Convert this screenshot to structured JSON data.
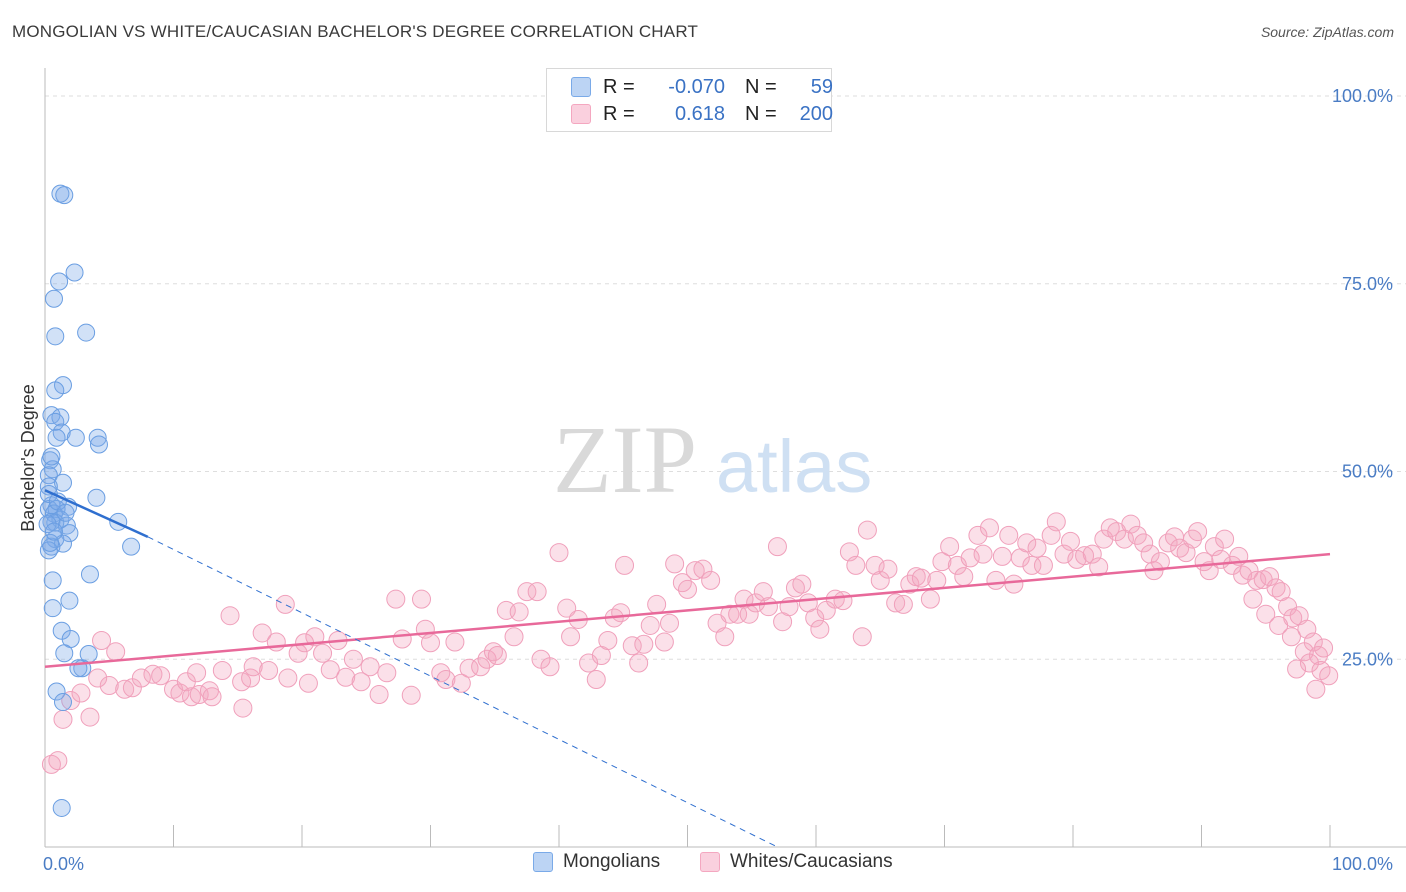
{
  "title": "MONGOLIAN VS WHITE/CAUCASIAN BACHELOR'S DEGREE CORRELATION CHART",
  "source": "Source: ZipAtlas.com",
  "watermark": {
    "zip": "ZIP",
    "atlas": "atlas"
  },
  "legend": {
    "rows": [
      {
        "r_label": "R =",
        "r_value": "-0.070",
        "n_label": "N =",
        "n_value": "59",
        "color": "#7aaae8"
      },
      {
        "r_label": "R =",
        "r_value": "0.618",
        "n_label": "N =",
        "n_value": "200",
        "color": "#f4a7c0"
      }
    ]
  },
  "bottom_legend": {
    "series1": "Mongolians",
    "series2": "Whites/Caucasians"
  },
  "colors": {
    "blue": "#7aaae8",
    "blue_line": "#2f6fcf",
    "pink": "#f4a7c0",
    "pink_line": "#e8699a",
    "tick": "#4a7cc4"
  },
  "chart_data": {
    "type": "scatter",
    "ylabel": "Bachelor's Degree",
    "xlim": [
      0,
      100
    ],
    "ylim": [
      0,
      100
    ],
    "x_tick_labels": [
      "0.0%",
      "100.0%"
    ],
    "y_tick_labels": [
      "100.0%",
      "75.0%",
      "50.0%",
      "25.0%"
    ],
    "y_ticks": [
      100,
      75,
      50,
      25
    ],
    "grid": true,
    "legend_position": "top-center",
    "series": [
      {
        "name": "Mongolians",
        "color": "#7aaae8",
        "trend": {
          "x": [
            0,
            8
          ],
          "y": [
            47.5,
            41.3
          ],
          "dashed_extension_to": [
            57,
            0
          ]
        },
        "points": [
          [
            1.2,
            87
          ],
          [
            1.5,
            86.8
          ],
          [
            2.3,
            76.5
          ],
          [
            1.1,
            75.3
          ],
          [
            0.7,
            73
          ],
          [
            3.2,
            68.5
          ],
          [
            0.8,
            68
          ],
          [
            1.4,
            61.5
          ],
          [
            0.8,
            60.8
          ],
          [
            0.5,
            57.5
          ],
          [
            1.2,
            57.2
          ],
          [
            0.8,
            56.6
          ],
          [
            1.3,
            55.2
          ],
          [
            2.4,
            54.5
          ],
          [
            4.1,
            54.5
          ],
          [
            4.2,
            53.6
          ],
          [
            0.9,
            54.5
          ],
          [
            0.4,
            51.5
          ],
          [
            0.6,
            50.3
          ],
          [
            0.3,
            49.5
          ],
          [
            1.4,
            48.5
          ],
          [
            0.3,
            48
          ],
          [
            4.0,
            46.5
          ],
          [
            0.5,
            45.5
          ],
          [
            1.8,
            45.3
          ],
          [
            0.3,
            45
          ],
          [
            0.9,
            45
          ],
          [
            0.7,
            44.4
          ],
          [
            1.2,
            43.6
          ],
          [
            0.5,
            43.3
          ],
          [
            0.8,
            43.2
          ],
          [
            1.7,
            42.8
          ],
          [
            5.7,
            43.3
          ],
          [
            1.9,
            41.8
          ],
          [
            0.8,
            41
          ],
          [
            1.4,
            40.4
          ],
          [
            0.5,
            40
          ],
          [
            6.7,
            40
          ],
          [
            0.3,
            39.5
          ],
          [
            0.6,
            35.5
          ],
          [
            3.5,
            36.3
          ],
          [
            1.9,
            32.8
          ],
          [
            0.6,
            31.8
          ],
          [
            1.3,
            28.8
          ],
          [
            2.0,
            27.7
          ],
          [
            3.4,
            25.7
          ],
          [
            1.5,
            25.8
          ],
          [
            2.9,
            23.8
          ],
          [
            2.6,
            23.8
          ],
          [
            0.9,
            20.7
          ],
          [
            1.4,
            19.3
          ],
          [
            1.3,
            5.2
          ],
          [
            0.3,
            47
          ],
          [
            0.2,
            43
          ],
          [
            0.4,
            40.5
          ],
          [
            1.0,
            46
          ],
          [
            0.5,
            52
          ],
          [
            1.6,
            44.5
          ],
          [
            0.7,
            42
          ]
        ]
      },
      {
        "name": "Whites/Caucasians",
        "color": "#f4a7c0",
        "trend": {
          "x": [
            0,
            100
          ],
          "y": [
            24,
            39
          ]
        },
        "points": [
          [
            0.5,
            11
          ],
          [
            1.0,
            11.5
          ],
          [
            1.4,
            17
          ],
          [
            2.0,
            19.5
          ],
          [
            2.8,
            20.5
          ],
          [
            3.5,
            17.3
          ],
          [
            4.1,
            22.5
          ],
          [
            4.4,
            27.5
          ],
          [
            5.5,
            26
          ],
          [
            5.0,
            21.5
          ],
          [
            6.2,
            21.0
          ],
          [
            6.8,
            21.2
          ],
          [
            7.5,
            22.5
          ],
          [
            8.4,
            23.0
          ],
          [
            9.0,
            22.8
          ],
          [
            10.0,
            21.0
          ],
          [
            10.5,
            20.5
          ],
          [
            11.0,
            22.0
          ],
          [
            11.4,
            20.0
          ],
          [
            12.0,
            20.3
          ],
          [
            12.8,
            20.8
          ],
          [
            11.8,
            23.2
          ],
          [
            13.0,
            20.0
          ],
          [
            13.8,
            23.5
          ],
          [
            14.4,
            30.8
          ],
          [
            15.3,
            22.0
          ],
          [
            15.4,
            18.5
          ],
          [
            16.0,
            22.5
          ],
          [
            16.2,
            24.0
          ],
          [
            16.9,
            28.5
          ],
          [
            17.4,
            23.5
          ],
          [
            18.0,
            27.3
          ],
          [
            18.7,
            32.3
          ],
          [
            18.9,
            22.5
          ],
          [
            19.7,
            25.8
          ],
          [
            20.5,
            21.8
          ],
          [
            20.2,
            27.2
          ],
          [
            21.0,
            28.0
          ],
          [
            21.6,
            25.8
          ],
          [
            22.2,
            23.6
          ],
          [
            22.8,
            27.5
          ],
          [
            23.4,
            22.6
          ],
          [
            24.0,
            25.0
          ],
          [
            24.6,
            22.0
          ],
          [
            25.3,
            24.0
          ],
          [
            26.0,
            20.3
          ],
          [
            26.6,
            23.2
          ],
          [
            27.3,
            33.0
          ],
          [
            27.8,
            27.7
          ],
          [
            28.5,
            20.2
          ],
          [
            29.3,
            33.0
          ],
          [
            29.6,
            29.0
          ],
          [
            30.0,
            27.2
          ],
          [
            30.8,
            23.2
          ],
          [
            31.2,
            22.3
          ],
          [
            31.9,
            27.3
          ],
          [
            32.4,
            21.8
          ],
          [
            33.0,
            23.8
          ],
          [
            33.9,
            24.0
          ],
          [
            34.4,
            25.0
          ],
          [
            34.9,
            26.0
          ],
          [
            35.2,
            25.5
          ],
          [
            35.9,
            31.5
          ],
          [
            36.5,
            28.0
          ],
          [
            36.9,
            31.3
          ],
          [
            37.5,
            34.0
          ],
          [
            38.3,
            34.0
          ],
          [
            38.6,
            25.0
          ],
          [
            39.3,
            24.0
          ],
          [
            40.0,
            39.2
          ],
          [
            40.6,
            31.8
          ],
          [
            40.9,
            28.0
          ],
          [
            41.5,
            30.3
          ],
          [
            42.3,
            24.5
          ],
          [
            42.9,
            22.3
          ],
          [
            43.3,
            25.5
          ],
          [
            43.8,
            27.5
          ],
          [
            44.3,
            30.5
          ],
          [
            44.8,
            31.2
          ],
          [
            45.1,
            37.5
          ],
          [
            45.7,
            26.8
          ],
          [
            46.2,
            24.5
          ],
          [
            46.6,
            27.0
          ],
          [
            47.1,
            29.5
          ],
          [
            47.6,
            32.3
          ],
          [
            48.2,
            27.3
          ],
          [
            48.6,
            29.8
          ],
          [
            49.0,
            37.7
          ],
          [
            49.6,
            35.2
          ],
          [
            50.0,
            34.3
          ],
          [
            50.6,
            36.8
          ],
          [
            51.2,
            37.0
          ],
          [
            51.8,
            35.5
          ],
          [
            52.3,
            29.8
          ],
          [
            52.9,
            28.0
          ],
          [
            53.3,
            31.0
          ],
          [
            53.9,
            31.0
          ],
          [
            54.4,
            33.0
          ],
          [
            54.8,
            31.0
          ],
          [
            55.3,
            32.5
          ],
          [
            55.9,
            34.0
          ],
          [
            56.3,
            32.0
          ],
          [
            57.0,
            40.0
          ],
          [
            57.4,
            30.0
          ],
          [
            57.9,
            32.0
          ],
          [
            58.4,
            34.5
          ],
          [
            58.9,
            35.0
          ],
          [
            59.4,
            32.5
          ],
          [
            59.9,
            30.5
          ],
          [
            60.3,
            29.0
          ],
          [
            60.8,
            31.5
          ],
          [
            61.5,
            33.0
          ],
          [
            62.1,
            32.8
          ],
          [
            62.6,
            39.3
          ],
          [
            63.1,
            37.5
          ],
          [
            63.6,
            28.0
          ],
          [
            64.0,
            42.2
          ],
          [
            64.6,
            37.5
          ],
          [
            65.0,
            35.5
          ],
          [
            65.6,
            37.0
          ],
          [
            66.2,
            32.5
          ],
          [
            66.8,
            32.3
          ],
          [
            67.3,
            35.0
          ],
          [
            67.8,
            36.0
          ],
          [
            68.2,
            35.8
          ],
          [
            68.9,
            33.0
          ],
          [
            69.4,
            35.5
          ],
          [
            69.8,
            38.0
          ],
          [
            70.4,
            40.0
          ],
          [
            71.0,
            37.5
          ],
          [
            71.5,
            36.0
          ],
          [
            72.0,
            38.5
          ],
          [
            72.6,
            41.5
          ],
          [
            73.0,
            39.0
          ],
          [
            73.5,
            42.5
          ],
          [
            74.0,
            35.5
          ],
          [
            74.5,
            38.7
          ],
          [
            75.0,
            41.5
          ],
          [
            75.4,
            35.0
          ],
          [
            75.9,
            38.5
          ],
          [
            76.4,
            40.5
          ],
          [
            76.8,
            37.5
          ],
          [
            77.2,
            39.8
          ],
          [
            77.7,
            37.5
          ],
          [
            78.3,
            41.5
          ],
          [
            78.7,
            43.3
          ],
          [
            79.3,
            39.0
          ],
          [
            79.8,
            40.7
          ],
          [
            80.3,
            38.3
          ],
          [
            80.9,
            38.8
          ],
          [
            81.5,
            39.0
          ],
          [
            82.0,
            37.3
          ],
          [
            82.4,
            41.0
          ],
          [
            82.9,
            42.5
          ],
          [
            83.4,
            42.0
          ],
          [
            84.0,
            41.0
          ],
          [
            84.5,
            43.0
          ],
          [
            85.0,
            41.5
          ],
          [
            85.5,
            40.5
          ],
          [
            86.0,
            39.0
          ],
          [
            86.3,
            36.8
          ],
          [
            86.8,
            38.0
          ],
          [
            87.4,
            40.5
          ],
          [
            87.9,
            41.3
          ],
          [
            88.3,
            39.8
          ],
          [
            88.8,
            39.2
          ],
          [
            89.3,
            41.0
          ],
          [
            89.7,
            42.0
          ],
          [
            90.2,
            38.0
          ],
          [
            90.6,
            36.8
          ],
          [
            91.0,
            40.0
          ],
          [
            91.5,
            38.3
          ],
          [
            91.8,
            41.0
          ],
          [
            92.4,
            37.5
          ],
          [
            92.9,
            38.7
          ],
          [
            93.2,
            36.2
          ],
          [
            93.7,
            36.8
          ],
          [
            94.3,
            35.5
          ],
          [
            94.8,
            35.6
          ],
          [
            95.3,
            36.0
          ],
          [
            95.8,
            34.5
          ],
          [
            96.2,
            34.0
          ],
          [
            96.7,
            32.0
          ],
          [
            97.1,
            30.5
          ],
          [
            97.6,
            30.8
          ],
          [
            98.2,
            29.0
          ],
          [
            98.7,
            27.3
          ],
          [
            99.1,
            25.5
          ],
          [
            99.5,
            26.5
          ],
          [
            94.0,
            33.0
          ],
          [
            95.0,
            31.0
          ],
          [
            96.0,
            29.5
          ],
          [
            97.0,
            28.0
          ],
          [
            98.0,
            26.0
          ],
          [
            98.4,
            24.5
          ],
          [
            99.3,
            23.5
          ],
          [
            99.9,
            22.8
          ],
          [
            97.4,
            23.7
          ],
          [
            98.9,
            21.0
          ]
        ]
      }
    ]
  }
}
